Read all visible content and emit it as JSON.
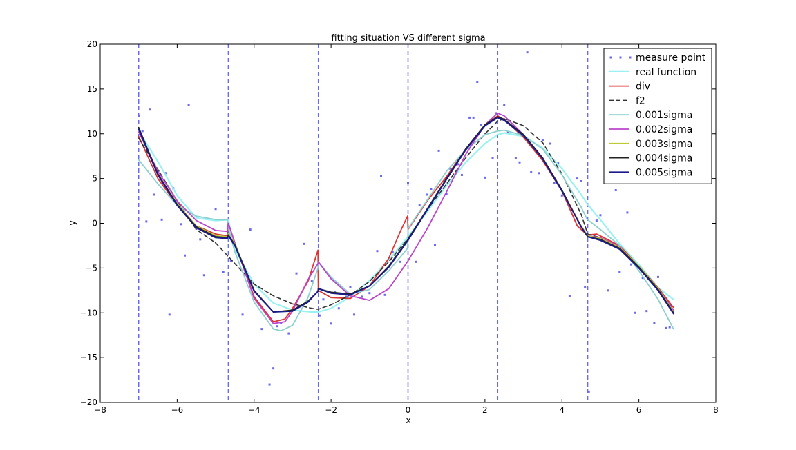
{
  "chart_data": {
    "type": "line",
    "title": "fitting situation VS different sigma",
    "xlabel": "x",
    "ylabel": "y",
    "xlim": [
      -8,
      8
    ],
    "ylim": [
      -20,
      20
    ],
    "xticks": [
      -8,
      -6,
      -4,
      -2,
      0,
      2,
      4,
      6,
      8
    ],
    "yticks": [
      -20,
      -15,
      -10,
      -5,
      0,
      5,
      10,
      15,
      20
    ],
    "xtick_labels": [
      "−8",
      "−6",
      "−4",
      "−2",
      "0",
      "2",
      "4",
      "6",
      "8"
    ],
    "ytick_labels": [
      "−20",
      "−15",
      "−10",
      "−5",
      "0",
      "5",
      "10",
      "15",
      "20"
    ],
    "grid": false,
    "legend_position": "top-right",
    "vlines": [
      -7.0,
      -4.67,
      -2.33,
      0.0,
      2.33,
      4.67
    ],
    "vline_color": "#6a6af0",
    "series": [
      {
        "name": "measure point",
        "kind": "scatter",
        "color": "#6a6af0",
        "x": [
          -7.0,
          -6.9,
          -6.8,
          -6.7,
          -6.6,
          -6.4,
          -6.3,
          -6.2,
          -6.1,
          -6.0,
          -5.9,
          -5.8,
          -5.7,
          -5.5,
          -5.4,
          -5.3,
          -5.1,
          -5.0,
          -4.8,
          -4.6,
          -4.3,
          -4.1,
          -3.8,
          -3.6,
          -3.5,
          -3.4,
          -3.3,
          -3.1,
          -3.0,
          -2.9,
          -2.7,
          -2.5,
          -2.3,
          -2.2,
          -2.0,
          -1.9,
          -1.8,
          -1.6,
          -1.5,
          -1.4,
          -1.2,
          -1.0,
          -0.8,
          -0.7,
          -0.6,
          -0.4,
          -0.2,
          0.0,
          0.2,
          0.3,
          0.5,
          0.6,
          0.7,
          0.8,
          1.0,
          1.1,
          1.3,
          1.4,
          1.6,
          1.7,
          1.8,
          1.9,
          2.0,
          2.2,
          2.3,
          2.5,
          2.6,
          2.8,
          2.9,
          3.1,
          3.2,
          3.4,
          3.5,
          3.7,
          3.8,
          3.9,
          4.0,
          4.2,
          4.4,
          4.5,
          4.6,
          4.7,
          4.9,
          5.0,
          5.2,
          5.4,
          5.5,
          5.7,
          5.8,
          5.9,
          6.1,
          6.2,
          6.4,
          6.5,
          6.7,
          6.8
        ],
        "y": [
          12.0,
          10.3,
          0.2,
          12.7,
          3.2,
          0.4,
          5.6,
          -10.2,
          3.9,
          2.4,
          -0.1,
          -3.6,
          13.2,
          -0.6,
          -1.8,
          -5.8,
          -1.4,
          1.6,
          -5.4,
          -4.2,
          -10.2,
          -0.7,
          -11.8,
          -18.0,
          -16.2,
          -11.5,
          -11.1,
          -12.3,
          -9.6,
          -5.6,
          -2.3,
          -6.4,
          -10.3,
          -8.5,
          -11.2,
          -7.7,
          -9.5,
          -8.2,
          -7.1,
          -10.2,
          -8.2,
          -7.8,
          -3.1,
          5.3,
          -8.0,
          -3.2,
          -4.3,
          4.5,
          -4.3,
          2.0,
          3.2,
          3.8,
          -2.4,
          8.1,
          3.3,
          6.1,
          6.6,
          5.4,
          11.8,
          11.8,
          15.8,
          11.0,
          5.1,
          7.3,
          12.3,
          13.2,
          10.2,
          7.3,
          6.8,
          19.1,
          5.7,
          5.6,
          9.3,
          8.9,
          4.5,
          6.7,
          3.1,
          -8.1,
          5.0,
          4.7,
          -7.1,
          -18.8,
          0.3,
          0.9,
          -7.5,
          3.7,
          -5.4,
          1.2,
          -4.6,
          -10.0,
          -6.1,
          -9.8,
          -11.1,
          -6.0,
          -11.7,
          -11.6
        ]
      },
      {
        "name": "real function",
        "kind": "line",
        "color": "#99f2f2",
        "width": 2.2,
        "x": [
          -7.0,
          -6.5,
          -6.0,
          -5.5,
          -5.0,
          -4.67,
          -4.5,
          -4.0,
          -3.5,
          -3.0,
          -2.5,
          -2.33,
          -2.0,
          -1.5,
          -1.0,
          -0.5,
          0.0,
          0.5,
          1.0,
          1.5,
          2.0,
          2.33,
          2.5,
          3.0,
          3.5,
          4.0,
          4.5,
          4.67,
          5.0,
          5.5,
          6.0,
          6.5,
          6.9
        ],
        "y": [
          10.3,
          6.9,
          3.1,
          0.6,
          0.3,
          0.4,
          -2.9,
          -6.8,
          -8.9,
          -9.7,
          -9.9,
          -9.9,
          -9.5,
          -8.2,
          -6.4,
          -4.1,
          -1.5,
          1.3,
          4.2,
          6.8,
          8.9,
          9.9,
          10.1,
          9.7,
          8.4,
          6.1,
          3.2,
          2.1,
          0.4,
          -2.3,
          -4.6,
          -7.2,
          -8.5
        ]
      },
      {
        "name": "div",
        "kind": "line",
        "color": "#dd3333",
        "width": 1.8,
        "x": [
          -7.0,
          -6.5,
          -6.0,
          -5.5,
          -5.0,
          -4.7,
          -4.67,
          -4.5,
          -4.0,
          -3.5,
          -3.2,
          -3.0,
          -2.6,
          -2.34,
          -2.33,
          -2.0,
          -1.5,
          -1.0,
          -0.5,
          -0.2,
          -0.01,
          0.0,
          0.5,
          1.0,
          1.5,
          2.0,
          2.33,
          2.5,
          3.0,
          3.5,
          4.0,
          4.4,
          4.66,
          4.67,
          4.9,
          5.5,
          6.0,
          6.5,
          6.9
        ],
        "y": [
          9.7,
          5.0,
          2.0,
          -0.3,
          -1.2,
          -1.4,
          0.0,
          -2.2,
          -8.2,
          -11.0,
          -10.7,
          -9.5,
          -6.5,
          -3.0,
          -7.5,
          -8.3,
          -8.4,
          -7.0,
          -3.9,
          -0.9,
          0.8,
          -0.7,
          2.5,
          5.2,
          8.3,
          11.0,
          12.0,
          11.6,
          9.6,
          7.0,
          3.6,
          -0.3,
          -1.3,
          -1.3,
          -1.2,
          -2.5,
          -4.8,
          -7.2,
          -9.4
        ]
      },
      {
        "name": "f2",
        "kind": "line",
        "color": "#333333",
        "width": 1.6,
        "dash": "6,4",
        "x": [
          -7.0,
          -6.5,
          -6.0,
          -5.5,
          -5.0,
          -4.5,
          -4.0,
          -3.5,
          -3.0,
          -2.5,
          -2.33,
          -2.0,
          -1.5,
          -1.0,
          -0.5,
          0.0,
          0.5,
          1.0,
          1.5,
          2.0,
          2.33,
          2.5,
          3.0,
          3.5,
          4.0,
          4.5,
          4.67,
          5.0,
          5.5,
          6.0,
          6.5,
          6.9
        ],
        "y": [
          9.5,
          6.0,
          2.5,
          -0.7,
          -2.2,
          -4.5,
          -6.8,
          -8.1,
          -9.0,
          -9.5,
          -9.6,
          -9.1,
          -8.0,
          -6.5,
          -4.3,
          -1.7,
          1.5,
          4.4,
          7.3,
          10.0,
          11.4,
          11.7,
          10.9,
          9.0,
          5.5,
          1.0,
          -1.2,
          -1.6,
          -2.7,
          -5.0,
          -7.4,
          -9.6
        ]
      },
      {
        "name": "0.001sigma",
        "kind": "line",
        "color": "#8ccfcf",
        "width": 1.8,
        "x": [
          -7.0,
          -6.5,
          -6.0,
          -5.5,
          -5.0,
          -4.7,
          -4.67,
          -4.5,
          -4.0,
          -3.5,
          -3.3,
          -3.0,
          -2.6,
          -2.34,
          -2.33,
          -2.0,
          -1.5,
          -1.0,
          -0.5,
          -0.01,
          0.0,
          0.5,
          1.0,
          1.5,
          2.0,
          2.33,
          2.5,
          3.0,
          3.5,
          4.0,
          4.5,
          4.66,
          4.67,
          5.0,
          5.5,
          6.0,
          6.5,
          6.9
        ],
        "y": [
          7.1,
          4.4,
          2.0,
          0.8,
          0.4,
          0.4,
          -0.5,
          -3.2,
          -8.8,
          -11.8,
          -12.0,
          -11.4,
          -8.3,
          -5.0,
          -4.3,
          -6.0,
          -7.9,
          -7.4,
          -5.3,
          -2.8,
          -0.6,
          2.6,
          5.8,
          8.2,
          9.9,
          10.3,
          10.4,
          9.8,
          8.3,
          5.4,
          1.8,
          0.4,
          0.4,
          -0.7,
          -2.5,
          -5.3,
          -8.5,
          -11.8
        ]
      },
      {
        "name": "0.002sigma",
        "kind": "line",
        "color": "#bb44cc",
        "width": 1.8,
        "x": [
          -7.0,
          -6.5,
          -6.0,
          -5.5,
          -5.0,
          -4.7,
          -4.67,
          -4.5,
          -4.0,
          -3.5,
          -3.2,
          -3.0,
          -2.6,
          -2.34,
          -2.33,
          -2.0,
          -1.5,
          -1.0,
          -0.5,
          0.0,
          0.5,
          1.0,
          1.5,
          2.0,
          2.33,
          2.5,
          3.0,
          3.5,
          4.0,
          4.5,
          4.67,
          5.0,
          5.5,
          6.0,
          6.5,
          6.9
        ],
        "y": [
          10.2,
          5.8,
          2.5,
          0.3,
          -0.8,
          -0.9,
          0.0,
          -2.2,
          -8.4,
          -11.2,
          -11.0,
          -9.8,
          -6.3,
          -4.5,
          -4.3,
          -6.2,
          -8.1,
          -8.6,
          -7.3,
          -4.2,
          -0.6,
          3.5,
          7.7,
          11.0,
          12.3,
          12.0,
          9.9,
          7.2,
          3.6,
          -0.3,
          -1.4,
          -1.6,
          -2.6,
          -4.9,
          -7.3,
          -9.7
        ]
      },
      {
        "name": "0.003sigma",
        "kind": "line",
        "color": "#bbcc33",
        "width": 1.8,
        "x": [
          -7.0,
          -6.5,
          -6.0,
          -5.5,
          -5.0,
          -4.7,
          -4.67,
          -4.5,
          -4.0,
          -3.5,
          -3.0,
          -2.6,
          -2.34,
          -2.33,
          -2.0,
          -1.5,
          -1.0,
          -0.5,
          0.0,
          0.5,
          1.0,
          1.5,
          2.0,
          2.33,
          2.5,
          3.0,
          3.5,
          4.0,
          4.5,
          4.67,
          5.0,
          5.5,
          6.0,
          6.5,
          6.9
        ],
        "y": [
          10.6,
          5.5,
          2.2,
          -0.3,
          -1.4,
          -1.5,
          -1.2,
          -2.3,
          -7.5,
          -9.9,
          -9.7,
          -8.7,
          -7.6,
          -7.3,
          -7.7,
          -7.9,
          -7.0,
          -4.8,
          -1.8,
          1.6,
          5.0,
          8.3,
          11.0,
          11.9,
          11.6,
          9.9,
          7.3,
          3.7,
          -0.3,
          -1.4,
          -1.7,
          -2.7,
          -4.8,
          -7.3,
          -9.9
        ]
      },
      {
        "name": "0.004sigma",
        "kind": "line",
        "color": "#222222",
        "width": 1.8,
        "x": [
          -7.0,
          -6.5,
          -6.0,
          -5.5,
          -5.0,
          -4.7,
          -4.67,
          -4.5,
          -4.0,
          -3.5,
          -3.0,
          -2.6,
          -2.34,
          -2.33,
          -2.0,
          -1.5,
          -1.0,
          -0.5,
          0.0,
          0.5,
          1.0,
          1.5,
          2.0,
          2.33,
          2.5,
          3.0,
          3.5,
          4.0,
          4.5,
          4.67,
          5.0,
          5.5,
          6.0,
          6.5,
          6.9
        ],
        "y": [
          10.7,
          5.5,
          2.1,
          -0.4,
          -1.5,
          -1.6,
          -1.3,
          -2.4,
          -7.5,
          -9.9,
          -9.7,
          -8.7,
          -7.6,
          -7.3,
          -7.7,
          -7.9,
          -7.0,
          -4.8,
          -1.8,
          1.6,
          5.0,
          8.3,
          11.0,
          11.9,
          11.6,
          9.9,
          7.3,
          3.7,
          -0.4,
          -1.5,
          -1.8,
          -2.8,
          -4.9,
          -7.4,
          -10.0
        ]
      },
      {
        "name": "0.005sigma",
        "kind": "line",
        "color": "#1a1a88",
        "width": 2.0,
        "x": [
          -7.0,
          -6.5,
          -6.0,
          -5.5,
          -5.0,
          -4.7,
          -4.67,
          -4.5,
          -4.0,
          -3.5,
          -3.0,
          -2.6,
          -2.34,
          -2.33,
          -2.0,
          -1.5,
          -1.0,
          -0.5,
          0.0,
          0.5,
          1.0,
          1.5,
          2.0,
          2.33,
          2.5,
          3.0,
          3.5,
          4.0,
          4.5,
          4.67,
          5.0,
          5.5,
          6.0,
          6.5,
          6.9
        ],
        "y": [
          10.5,
          5.4,
          2.0,
          -0.5,
          -1.6,
          -1.7,
          -1.4,
          -2.5,
          -7.6,
          -9.9,
          -9.8,
          -8.8,
          -7.6,
          -7.3,
          -7.8,
          -8.0,
          -7.0,
          -4.9,
          -1.9,
          1.5,
          4.9,
          8.2,
          10.9,
          11.8,
          11.5,
          9.8,
          7.2,
          3.6,
          -0.4,
          -1.5,
          -1.9,
          -2.9,
          -5.0,
          -7.5,
          -10.1
        ]
      }
    ]
  }
}
